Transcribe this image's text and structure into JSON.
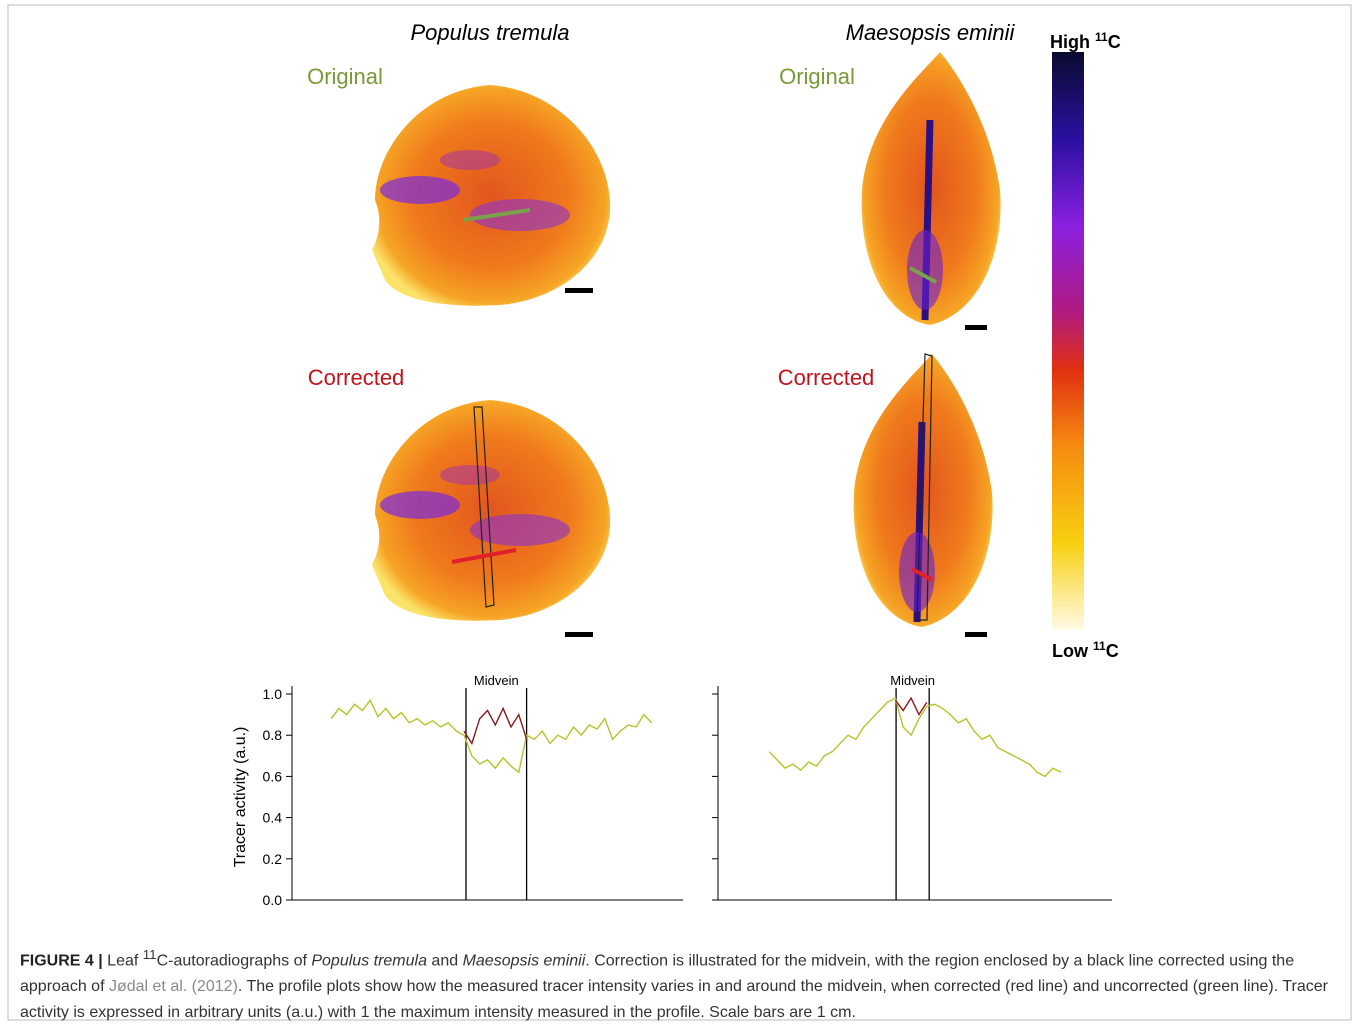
{
  "figure": {
    "species_left": "Populus tremula",
    "species_right": "Maesopsis eminii",
    "original": "Original",
    "corrected": "Corrected",
    "colorbar": {
      "high": "High",
      "low": "Low",
      "mass": "11",
      "element": "C"
    },
    "caption": {
      "label": "FIGURE 4 |",
      "parts": [
        " Leaf ",
        "11",
        "C-autoradiographs of ",
        "Populus tremula",
        " and ",
        "Maesopsis eminii",
        ". Correction is illustrated for the midvein, with the region enclosed by a black line corrected using the approach of ",
        "Jødal et al. (2012)",
        ". The profile plots show how the measured tracer intensity varies in and around the midvein, when corrected (red line) and uncorrected (green line). Tracer activity is expressed in arbitrary units (a.u.) with 1 the maximum intensity measured in the profile. Scale bars are 1 cm."
      ]
    }
  },
  "chart_data": [
    {
      "type": "line",
      "y_label": "Tracer activity (a.u.)",
      "annotation": {
        "text": "Midvein",
        "range": [
          44.5,
          60
        ]
      },
      "xlim": [
        0,
        100
      ],
      "ylim": [
        0,
        1.0
      ],
      "yticks": [
        {
          "value": 0,
          "label": "0.0"
        },
        0.2,
        0.4,
        0.6,
        0.8,
        {
          "value": 1.0,
          "label": "1.0"
        }
      ],
      "x": [
        10,
        12,
        14,
        16,
        18,
        20,
        22,
        24,
        26,
        28,
        30,
        32,
        34,
        36,
        38,
        40,
        42,
        44,
        46,
        48,
        50,
        52,
        54,
        56,
        58,
        60,
        62,
        64,
        66,
        68,
        70,
        72,
        74,
        76,
        78,
        80,
        82,
        84,
        86,
        88,
        90,
        92
      ],
      "series": [
        {
          "color": "#b5c42a",
          "values": [
            0.88,
            0.93,
            0.9,
            0.95,
            0.92,
            0.97,
            0.89,
            0.93,
            0.88,
            0.91,
            0.86,
            0.88,
            0.85,
            0.87,
            0.84,
            0.86,
            0.82,
            0.8,
            0.7,
            0.66,
            0.68,
            0.64,
            0.69,
            0.65,
            0.62,
            0.8,
            0.78,
            0.82,
            0.76,
            0.8,
            0.78,
            0.84,
            0.8,
            0.85,
            0.83,
            0.88,
            0.78,
            0.82,
            0.85,
            0.84,
            0.9,
            0.86
          ]
        },
        {
          "color": "#8b1a1a",
          "values": [
            null,
            null,
            null,
            null,
            null,
            null,
            null,
            null,
            null,
            null,
            null,
            null,
            null,
            null,
            null,
            null,
            null,
            0.82,
            0.76,
            0.88,
            0.92,
            0.85,
            0.93,
            0.84,
            0.9,
            0.78,
            null,
            null,
            null,
            null,
            null,
            null,
            null,
            null,
            null,
            null,
            null,
            null,
            null,
            null,
            null,
            null
          ]
        }
      ]
    },
    {
      "type": "line",
      "annotation": {
        "text": "Midvein",
        "range": [
          45.2,
          53.6
        ]
      },
      "xlim": [
        0,
        100
      ],
      "ylim": [
        0,
        1.0
      ],
      "yticks": [
        0,
        0.2,
        0.4,
        0.6,
        0.8,
        1
      ],
      "x": [
        13,
        15,
        17,
        19,
        21,
        23,
        25,
        27,
        29,
        31,
        33,
        35,
        37,
        39,
        41,
        43,
        45,
        47,
        49,
        51,
        53,
        55,
        57,
        59,
        61,
        63,
        65,
        67,
        69,
        71,
        73,
        75,
        77,
        79,
        81,
        83,
        85,
        87
      ],
      "series": [
        {
          "color": "#b5c42a",
          "values": [
            0.72,
            0.68,
            0.64,
            0.66,
            0.63,
            0.67,
            0.65,
            0.7,
            0.72,
            0.76,
            0.8,
            0.78,
            0.84,
            0.88,
            0.92,
            0.96,
            0.98,
            0.84,
            0.8,
            0.88,
            0.94,
            0.95,
            0.93,
            0.9,
            0.86,
            0.88,
            0.82,
            0.78,
            0.8,
            0.74,
            0.72,
            0.7,
            0.68,
            0.66,
            0.62,
            0.6,
            0.64,
            0.62
          ]
        },
        {
          "color": "#8b1a1a",
          "values": [
            null,
            null,
            null,
            null,
            null,
            null,
            null,
            null,
            null,
            null,
            null,
            null,
            null,
            null,
            null,
            null,
            0.97,
            0.92,
            0.98,
            0.9,
            0.96,
            null,
            null,
            null,
            null,
            null,
            null,
            null,
            null,
            null,
            null,
            null,
            null,
            null,
            null,
            null,
            null,
            null
          ]
        }
      ]
    }
  ]
}
